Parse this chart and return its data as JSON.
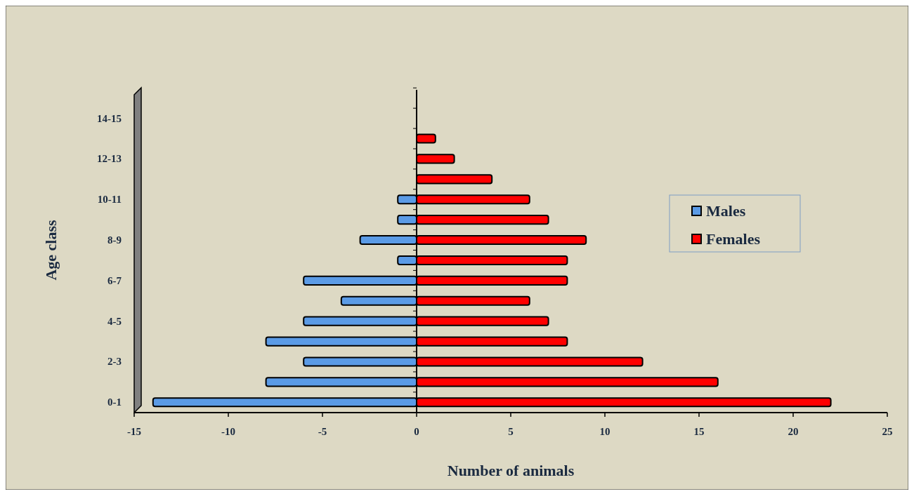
{
  "chart_data": {
    "type": "bar",
    "orientation": "horizontal",
    "xlabel": "Number of animals",
    "ylabel": "Age class",
    "categories": [
      null,
      "14-15",
      null,
      "12-13",
      null,
      "10-11",
      null,
      "8-9",
      null,
      "6-7",
      null,
      "4-5",
      null,
      "2-3",
      null,
      "0-1"
    ],
    "series": [
      {
        "name": "Males",
        "color": "#5b9be6",
        "values": [
          0,
          0,
          0,
          0,
          0,
          -1,
          -1,
          -3,
          -1,
          -6,
          -4,
          -6,
          -8,
          -6,
          -8,
          -14
        ]
      },
      {
        "name": "Females",
        "color": "#ff0000",
        "values": [
          0,
          0,
          1,
          2,
          4,
          6,
          7,
          9,
          8,
          8,
          6,
          7,
          8,
          12,
          16,
          22
        ]
      }
    ],
    "xlim": [
      -15,
      25
    ],
    "xticks": [
      -15,
      -10,
      -5,
      0,
      5,
      10,
      15,
      20,
      25
    ],
    "legend": "right",
    "stacked": true
  }
}
